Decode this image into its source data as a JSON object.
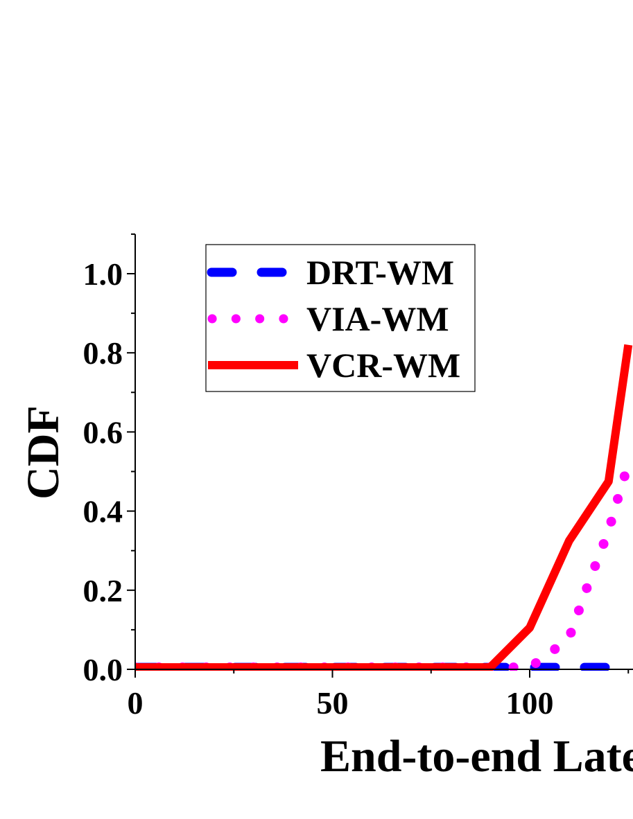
{
  "chart_data": {
    "type": "line",
    "title": "",
    "xlabel": "End-to-end Latency",
    "ylabel": "CDF",
    "xlim": [
      0,
      125
    ],
    "ylim": [
      0,
      1.1
    ],
    "x_ticks": [
      0,
      50,
      100
    ],
    "y_ticks": [
      0.0,
      0.2,
      0.4,
      0.6,
      0.8,
      1.0
    ],
    "x_tick_labels": [
      "0",
      "50",
      "100"
    ],
    "y_tick_labels": [
      "0.0",
      "0.2",
      "0.4",
      "0.6",
      "0.8",
      "1.0"
    ],
    "grid": false,
    "legend_position": "top-left",
    "series": [
      {
        "name": "DRT-WM",
        "color": "#0000ff",
        "style": "dashed",
        "x": [
          0,
          20,
          40,
          60,
          80,
          100,
          110,
          120,
          125
        ],
        "y": [
          0.005,
          0.005,
          0.005,
          0.005,
          0.005,
          0.005,
          0.005,
          0.005,
          0.005
        ]
      },
      {
        "name": "VIA-WM",
        "color": "#ff00ff",
        "style": "dotted",
        "x": [
          0,
          90,
          95,
          100,
          105,
          110,
          115,
          120,
          122,
          125
        ],
        "y": [
          0.005,
          0.005,
          0.005,
          0.005,
          0.04,
          0.08,
          0.22,
          0.35,
          0.42,
          0.52
        ]
      },
      {
        "name": "VCR-WM",
        "color": "#ff0000",
        "style": "solid",
        "x": [
          0,
          90,
          100,
          110,
          120,
          125
        ],
        "y": [
          0.005,
          0.005,
          0.105,
          0.325,
          0.475,
          0.82
        ]
      }
    ]
  }
}
